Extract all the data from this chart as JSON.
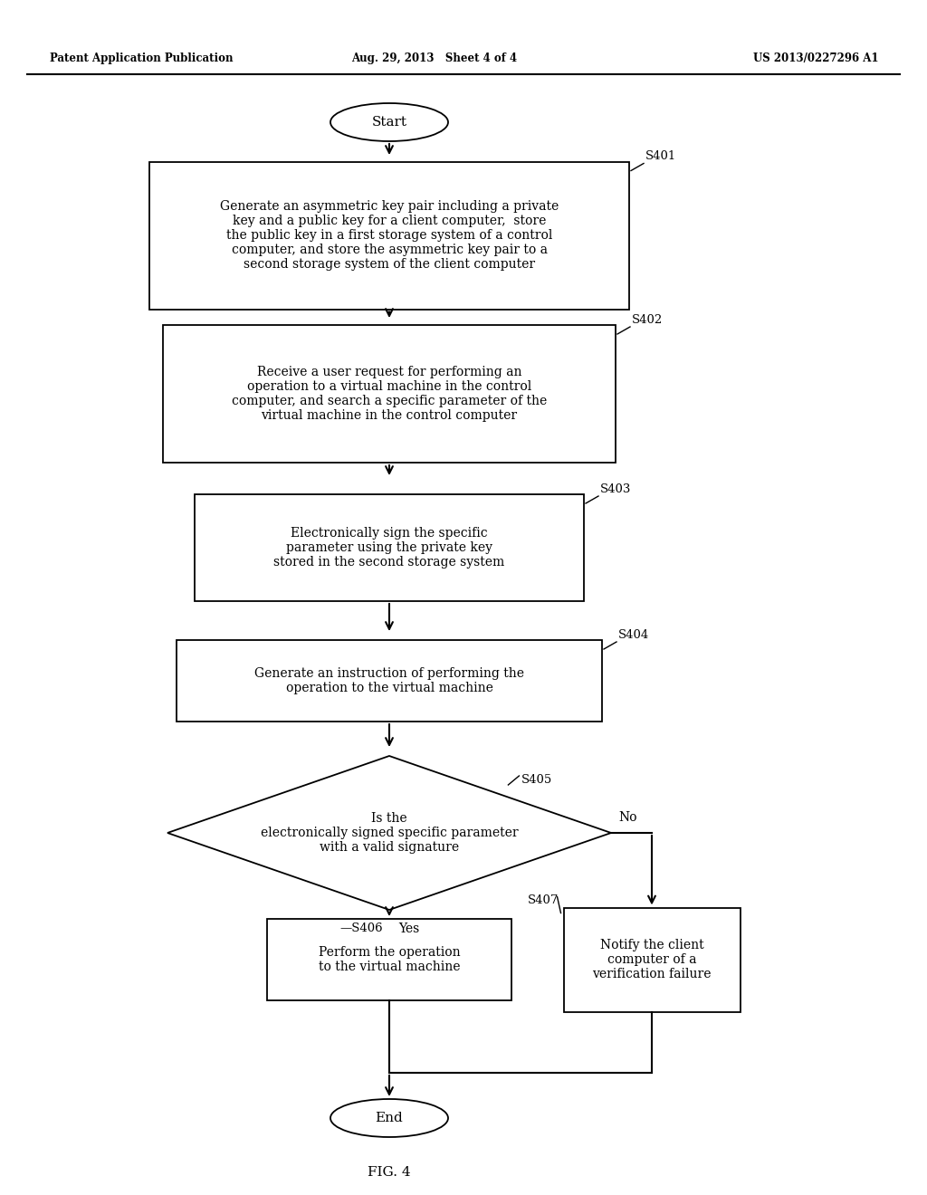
{
  "bg_color": "#ffffff",
  "header_left": "Patent Application Publication",
  "header_center": "Aug. 29, 2013   Sheet 4 of 4",
  "header_right": "US 2013/0227296 A1",
  "fig_label": "FIG. 4",
  "start_text": "Start",
  "end_text": "End",
  "s401_text": "Generate an asymmetric key pair including a private\nkey and a public key for a client computer,  store\nthe public key in a first storage system of a control\ncomputer, and store the asymmetric key pair to a\nsecond storage system of the client computer",
  "s401_label": "S401",
  "s402_text": "Receive a user request for performing an\noperation to a virtual machine in the control\ncomputer, and search a specific parameter of the\nvirtual machine in the control computer",
  "s402_label": "S402",
  "s403_text": "Electronically sign the specific\nparameter using the private key\nstored in the second storage system",
  "s403_label": "S403",
  "s404_text": "Generate an instruction of performing the\noperation to the virtual machine",
  "s404_label": "S404",
  "s405_text": "Is the\nelectronically signed specific parameter\nwith a valid signature",
  "s405_label": "S405",
  "s406_text": "Perform the operation\nto the virtual machine",
  "s406_label": "S406",
  "s407_text": "Notify the client\ncomputer of a\nverification failure",
  "s407_label": "S407",
  "yes_text": "Yes",
  "no_text": "No"
}
